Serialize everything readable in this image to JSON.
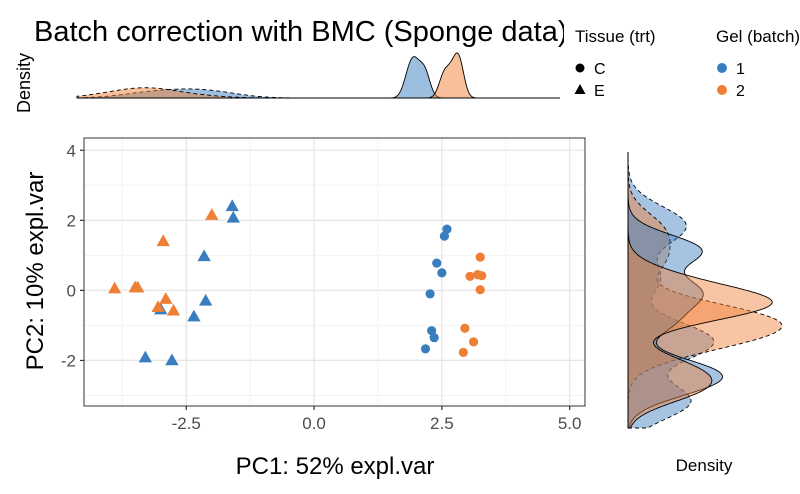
{
  "chart_data": {
    "type": "scatter",
    "title": "Batch correction with BMC (Sponge data)",
    "xlabel": "PC1: 52% expl.var",
    "ylabel": "PC2: 10% expl.var",
    "xlim": [
      -4.5,
      5.3
    ],
    "ylim": [
      -3.3,
      4.35
    ],
    "xticks": [
      {
        "value": -2.5,
        "label": "-2.5"
      },
      {
        "value": 0,
        "label": "0.0"
      },
      {
        "value": 2.5,
        "label": "2.5"
      },
      {
        "value": 5,
        "label": "5.0"
      }
    ],
    "yticks": [
      {
        "value": -2,
        "label": "-2"
      },
      {
        "value": 0,
        "label": "0"
      },
      {
        "value": 2,
        "label": "2"
      },
      {
        "value": 4,
        "label": "4"
      }
    ],
    "grid": true,
    "top_density_label": "Density",
    "right_density_label": "Density",
    "legend_shape": {
      "title": "Tissue (trt)",
      "items": [
        {
          "label": "C",
          "shape": "circle"
        },
        {
          "label": "E",
          "shape": "triangle"
        }
      ]
    },
    "legend_color": {
      "title": "Gel (batch)",
      "items": [
        {
          "label": "1",
          "color": "#3a7dbf"
        },
        {
          "label": "2",
          "color": "#ef7f35"
        }
      ]
    },
    "colors": {
      "1": "#3a7dbf",
      "2": "#ef7f35"
    },
    "points": [
      {
        "x": 2.6,
        "y": 1.75,
        "tissue": "C",
        "gel": "1"
      },
      {
        "x": 2.55,
        "y": 1.55,
        "tissue": "C",
        "gel": "1"
      },
      {
        "x": 2.4,
        "y": 0.78,
        "tissue": "C",
        "gel": "1"
      },
      {
        "x": 2.5,
        "y": 0.5,
        "tissue": "C",
        "gel": "1"
      },
      {
        "x": 2.27,
        "y": -0.1,
        "tissue": "C",
        "gel": "1"
      },
      {
        "x": 2.3,
        "y": -1.15,
        "tissue": "C",
        "gel": "1"
      },
      {
        "x": 2.35,
        "y": -1.35,
        "tissue": "C",
        "gel": "1"
      },
      {
        "x": 2.18,
        "y": -1.67,
        "tissue": "C",
        "gel": "1"
      },
      {
        "x": 3.25,
        "y": 0.95,
        "tissue": "C",
        "gel": "2"
      },
      {
        "x": 3.2,
        "y": 0.45,
        "tissue": "C",
        "gel": "2"
      },
      {
        "x": 3.28,
        "y": 0.42,
        "tissue": "C",
        "gel": "2"
      },
      {
        "x": 3.05,
        "y": 0.4,
        "tissue": "C",
        "gel": "2"
      },
      {
        "x": 3.25,
        "y": 0.02,
        "tissue": "C",
        "gel": "2"
      },
      {
        "x": 2.95,
        "y": -1.08,
        "tissue": "C",
        "gel": "2"
      },
      {
        "x": 3.12,
        "y": -1.47,
        "tissue": "C",
        "gel": "2"
      },
      {
        "x": 2.92,
        "y": -1.77,
        "tissue": "C",
        "gel": "2"
      },
      {
        "x": -1.6,
        "y": 2.4,
        "tissue": "E",
        "gel": "1"
      },
      {
        "x": -1.58,
        "y": 2.07,
        "tissue": "E",
        "gel": "1"
      },
      {
        "x": -2.15,
        "y": 0.97,
        "tissue": "E",
        "gel": "1"
      },
      {
        "x": -2.12,
        "y": -0.3,
        "tissue": "E",
        "gel": "1"
      },
      {
        "x": -2.35,
        "y": -0.75,
        "tissue": "E",
        "gel": "1"
      },
      {
        "x": -3.0,
        "y": -0.55,
        "tissue": "E",
        "gel": "1"
      },
      {
        "x": -3.3,
        "y": -1.92,
        "tissue": "E",
        "gel": "1"
      },
      {
        "x": -2.78,
        "y": -2.0,
        "tissue": "E",
        "gel": "1"
      },
      {
        "x": -2.0,
        "y": 2.15,
        "tissue": "E",
        "gel": "2"
      },
      {
        "x": -2.95,
        "y": 1.4,
        "tissue": "E",
        "gel": "2"
      },
      {
        "x": -3.5,
        "y": 0.08,
        "tissue": "E",
        "gel": "2"
      },
      {
        "x": -3.45,
        "y": 0.08,
        "tissue": "E",
        "gel": "2"
      },
      {
        "x": -3.9,
        "y": 0.05,
        "tissue": "E",
        "gel": "2"
      },
      {
        "x": -2.9,
        "y": -0.25,
        "tissue": "E",
        "gel": "2"
      },
      {
        "x": -3.05,
        "y": -0.48,
        "tissue": "E",
        "gel": "2"
      },
      {
        "x": -2.75,
        "y": -0.58,
        "tissue": "E",
        "gel": "2"
      }
    ]
  }
}
